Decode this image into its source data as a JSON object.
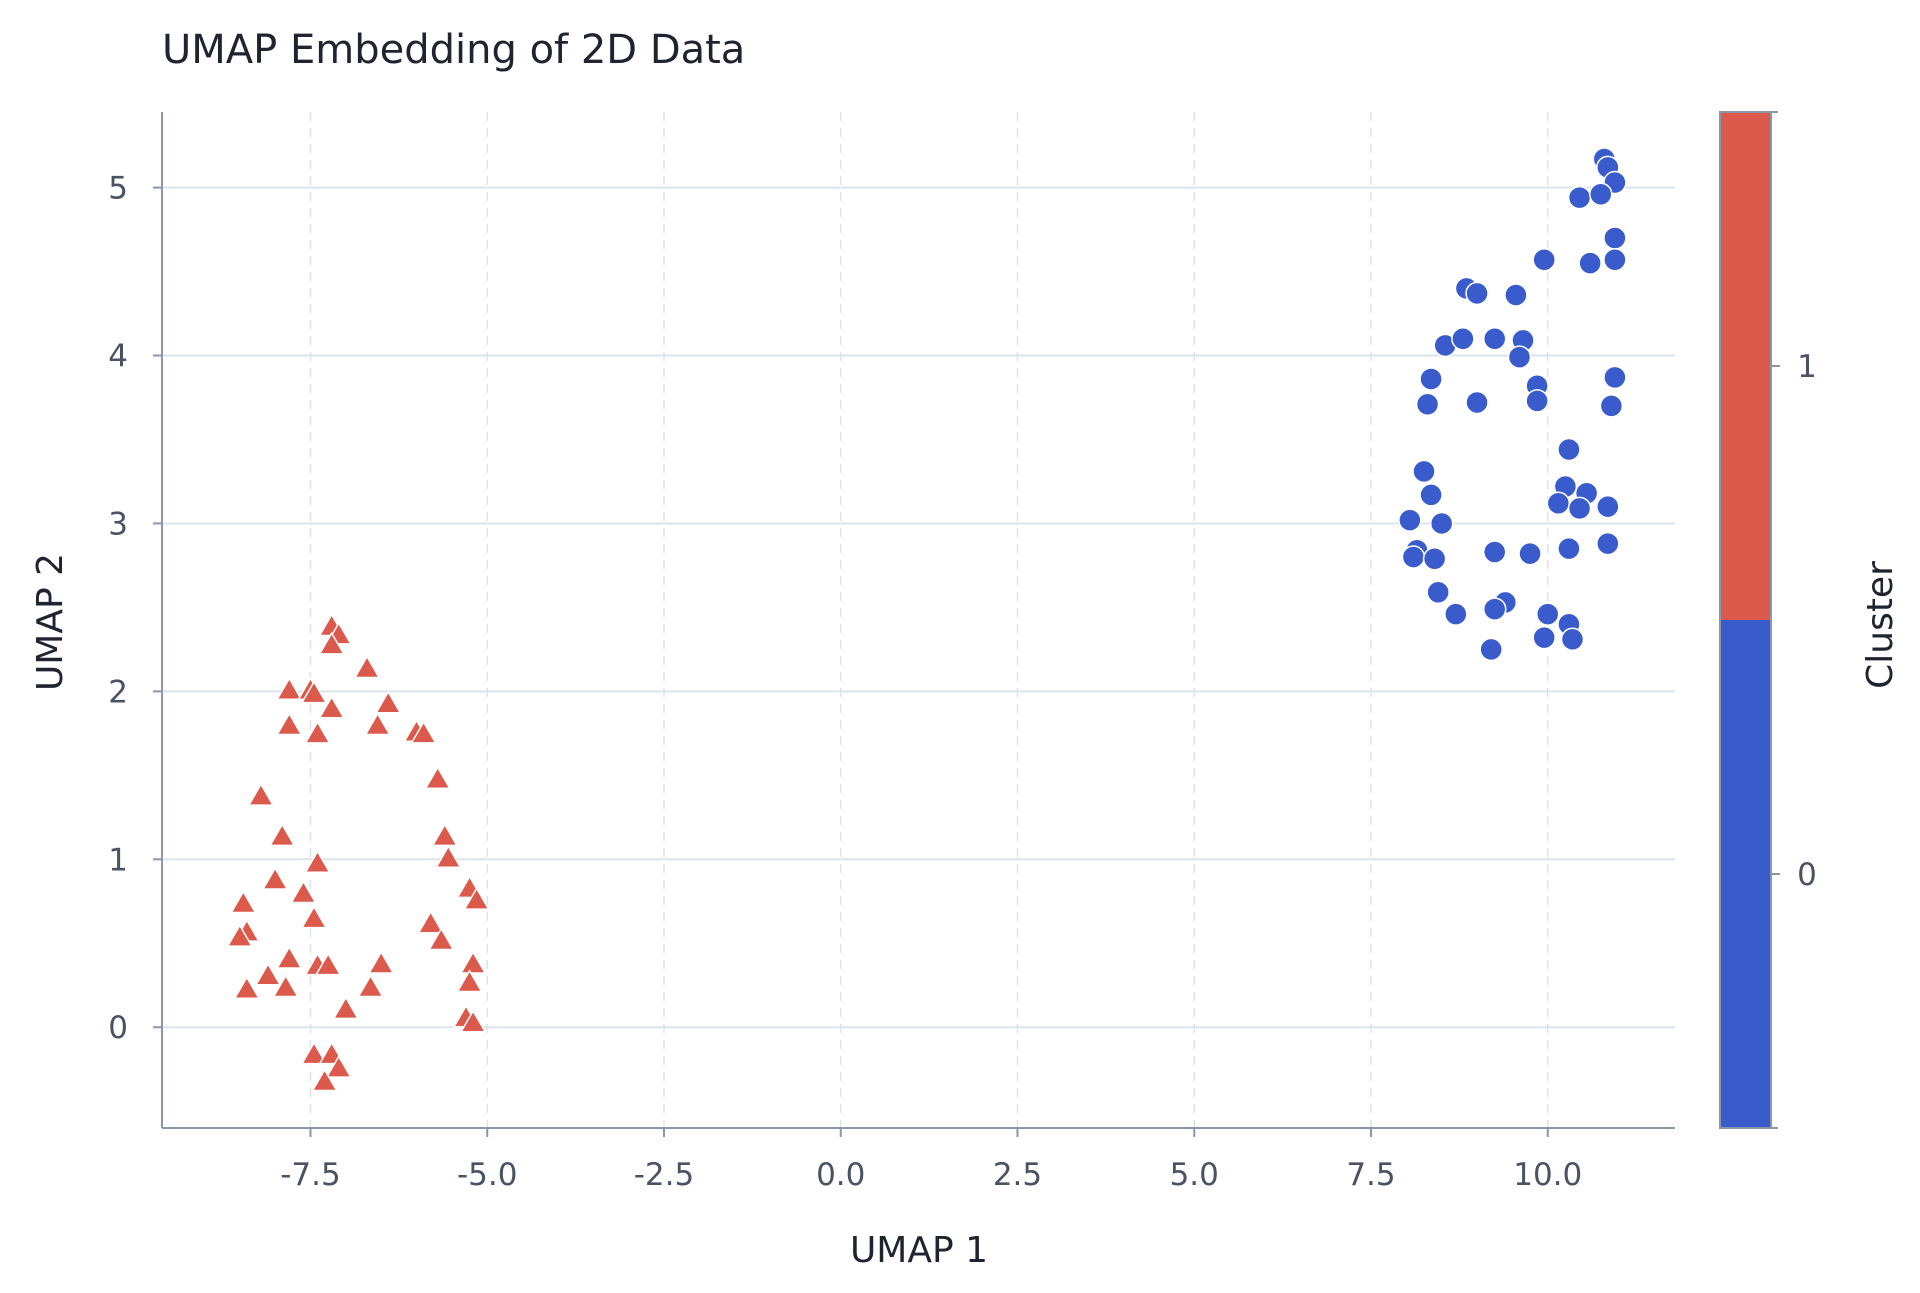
{
  "chart_data": {
    "type": "scatter",
    "title": "UMAP Embedding of 2D Data",
    "xlabel": "UMAP 1",
    "ylabel": "UMAP 2",
    "xlim": [
      -9.6,
      11.8
    ],
    "ylim": [
      -0.6,
      5.45
    ],
    "x_ticks": [
      "-7.5",
      "-5.0",
      "-2.5",
      "0.0",
      "2.5",
      "5.0",
      "7.5",
      "10.0"
    ],
    "x_tick_values": [
      -7.5,
      -5.0,
      -2.5,
      0.0,
      2.5,
      5.0,
      7.5,
      10.0
    ],
    "y_ticks": [
      "0",
      "1",
      "2",
      "3",
      "4",
      "5"
    ],
    "y_tick_values": [
      0,
      1,
      2,
      3,
      4,
      5
    ],
    "grid": true,
    "colorbar": {
      "label": "Cluster",
      "ticks": [
        "0",
        "1"
      ],
      "tick_values": [
        0,
        1
      ],
      "range": [
        -0.5,
        1.5
      ]
    },
    "colors": {
      "cluster_0": "#3a5bcc",
      "cluster_1": "#dc5a4c"
    },
    "series": [
      {
        "cluster": 1,
        "marker": "triangle",
        "x": [
          -7.2,
          -7.1,
          -7.2,
          -6.7,
          -7.8,
          -7.5,
          -7.45,
          -7.2,
          -6.4,
          -7.8,
          -7.4,
          -6.55,
          -6.0,
          -5.9,
          -5.7,
          -8.2,
          -7.9,
          -5.6,
          -5.55,
          -8.0,
          -7.4,
          -5.25,
          -7.6,
          -5.15,
          -8.45,
          -7.45,
          -5.8,
          -8.4,
          -8.5,
          -5.65,
          -7.8,
          -7.4,
          -7.25,
          -6.5,
          -8.1,
          -5.2,
          -7.85,
          -6.65,
          -8.4,
          -5.25,
          -7.0,
          -5.3,
          -5.2,
          -7.45,
          -7.2,
          -7.1,
          -7.3
        ],
        "y": [
          2.38,
          2.33,
          2.27,
          2.13,
          2.0,
          2.0,
          1.98,
          1.89,
          1.92,
          1.79,
          1.74,
          1.79,
          1.75,
          1.74,
          1.47,
          1.37,
          1.13,
          1.13,
          1.0,
          0.87,
          0.97,
          0.82,
          0.79,
          0.75,
          0.73,
          0.64,
          0.61,
          0.56,
          0.53,
          0.51,
          0.4,
          0.36,
          0.36,
          0.37,
          0.3,
          0.37,
          0.23,
          0.23,
          0.22,
          0.26,
          0.1,
          0.05,
          0.02,
          -0.17,
          -0.17,
          -0.25,
          -0.33
        ]
      },
      {
        "cluster": 0,
        "marker": "circle",
        "x": [
          10.8,
          10.85,
          10.95,
          10.45,
          10.75,
          10.95,
          9.95,
          10.6,
          10.95,
          8.85,
          9.0,
          9.55,
          8.55,
          8.8,
          9.25,
          9.65,
          9.6,
          8.35,
          9.85,
          10.95,
          8.3,
          9.0,
          9.85,
          10.9,
          10.3,
          8.25,
          8.35,
          10.25,
          10.55,
          10.15,
          10.45,
          10.85,
          8.05,
          8.5,
          8.15,
          9.25,
          9.75,
          10.3,
          10.85,
          8.1,
          8.4,
          8.45,
          9.4,
          8.7,
          9.25,
          10.0,
          10.3,
          9.95,
          10.35,
          9.2
        ],
        "y": [
          5.17,
          5.12,
          5.03,
          4.94,
          4.96,
          4.7,
          4.57,
          4.55,
          4.57,
          4.4,
          4.37,
          4.36,
          4.06,
          4.1,
          4.1,
          4.09,
          3.99,
          3.86,
          3.82,
          3.87,
          3.71,
          3.72,
          3.73,
          3.7,
          3.44,
          3.31,
          3.17,
          3.22,
          3.18,
          3.12,
          3.09,
          3.1,
          3.02,
          3.0,
          2.84,
          2.83,
          2.82,
          2.85,
          2.88,
          2.8,
          2.79,
          2.59,
          2.53,
          2.46,
          2.49,
          2.46,
          2.4,
          2.32,
          2.31,
          2.25
        ]
      }
    ]
  }
}
